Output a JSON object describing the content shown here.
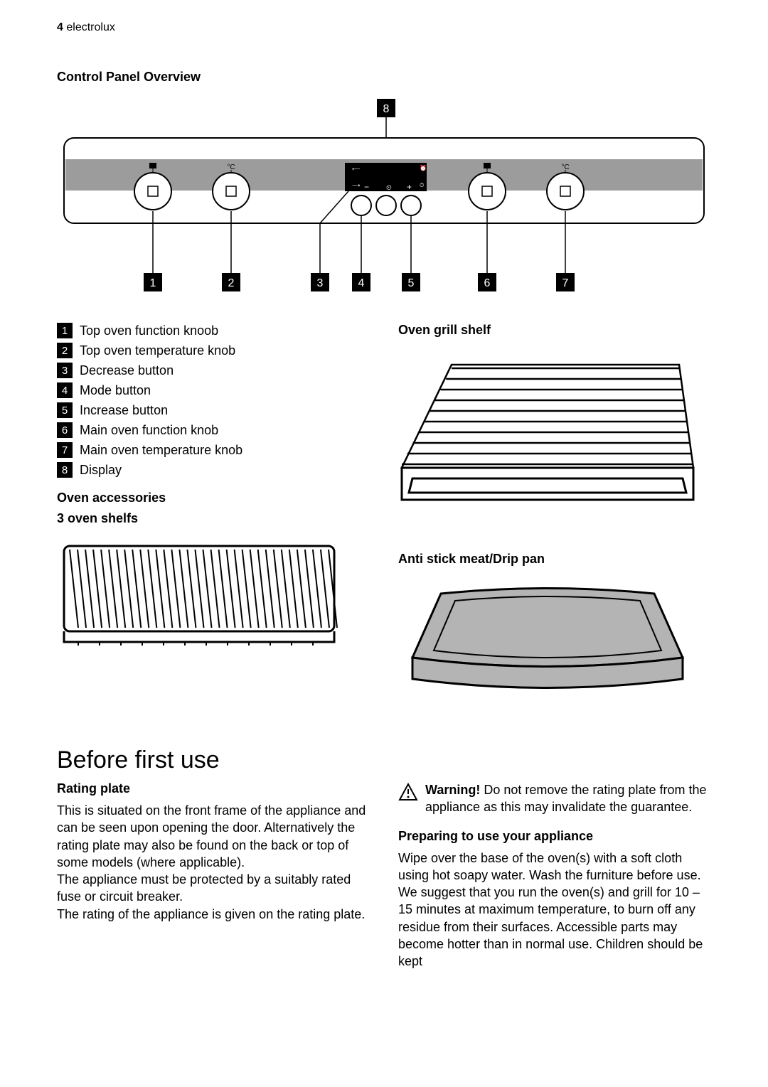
{
  "header": {
    "page_number": "4",
    "brand": "electrolux"
  },
  "control_panel": {
    "title": "Control Panel Overview",
    "callouts": [
      "1",
      "2",
      "3",
      "4",
      "5",
      "6",
      "7",
      "8"
    ],
    "legend": [
      {
        "num": "1",
        "label": "Top oven function knoob"
      },
      {
        "num": "2",
        "label": "Top oven temperature knob"
      },
      {
        "num": "3",
        "label": "Decrease button"
      },
      {
        "num": "4",
        "label": "Mode button"
      },
      {
        "num": "5",
        "label": "Increase button"
      },
      {
        "num": "6",
        "label": "Main oven function knob"
      },
      {
        "num": "7",
        "label": "Main oven temperature knob"
      },
      {
        "num": "8",
        "label": "Display"
      }
    ],
    "diagram": {
      "panel_outline_color": "#000000",
      "panel_fill": "#ffffff",
      "strip_fill": "#9c9c9c",
      "knob_circle_stroke": "#000000",
      "display_fill": "#000000",
      "callout_line_color": "#000000",
      "callout_box_fill": "#000000",
      "callout_text_color": "#ffffff",
      "button_stroke": "#000000",
      "knob_positions_x": [
        135,
        245,
        340,
        400,
        433,
        485,
        545,
        655
      ],
      "callout_bottom_x": [
        135,
        245,
        340,
        400,
        433,
        485,
        545,
        655
      ]
    }
  },
  "accessories": {
    "title": "Oven accessories",
    "shelf_title": "3 oven shelfs",
    "grill_shelf_title": "Oven grill shelf",
    "drip_pan_title": "Anti stick meat/Drip pan",
    "shelf_lines": 34,
    "grill_bars": 10,
    "colors": {
      "stroke": "#000000",
      "drip_fill": "#b4b4b4"
    }
  },
  "before_first_use": {
    "heading": "Before first use",
    "rating_plate_title": "Rating plate",
    "rating_plate_body_1": "This is situated on the front frame of the appliance and can be seen upon opening the door. Alternatively the rating plate may also be found on the back or top of some models (where applicable).",
    "rating_plate_body_2": "The appliance must be protected by a suitably rated fuse or circuit breaker.",
    "rating_plate_body_3": "The rating of the appliance is given on the rating plate.",
    "warning_label": "Warning!",
    "warning_body": " Do not remove the rating plate from the appliance as this may invalidate the guarantee.",
    "preparing_title": "Preparing to use your appliance",
    "preparing_body_1": "Wipe over the base of the oven(s) with a soft cloth using hot soapy water. Wash the furniture before use.",
    "preparing_body_2": "We suggest that you run the oven(s) and grill for 10 – 15 minutes at maximum temperature, to burn off any residue from their surfaces. Accessible parts may become hotter than in normal use. Children should be kept"
  }
}
